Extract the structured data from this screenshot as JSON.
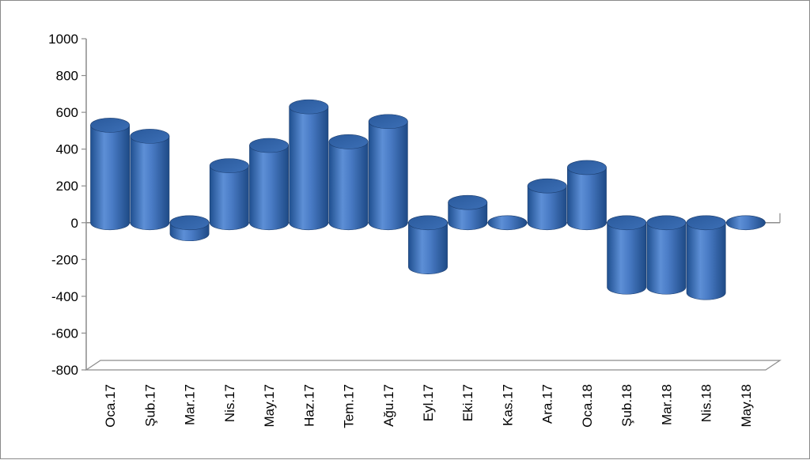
{
  "chart_data": {
    "type": "bar",
    "categories": [
      "Oca.17",
      "Şub.17",
      "Mar.17",
      "Nis.17",
      "May.17",
      "Haz.17",
      "Tem.17",
      "Ağu.17",
      "Eyl.17",
      "Eki.17",
      "Kas.17",
      "Ara.17",
      "Oca.18",
      "Şub.18",
      "Mar.18",
      "Nis.18",
      "May.18"
    ],
    "values": [
      530,
      470,
      -60,
      310,
      420,
      630,
      440,
      550,
      -240,
      110,
      -10,
      200,
      300,
      -350,
      -350,
      -380,
      -15
    ],
    "ylim": [
      -800,
      1000
    ],
    "yticks": [
      1000,
      800,
      600,
      400,
      200,
      0,
      -200,
      -400,
      -600,
      -800
    ],
    "ytick_labels": [
      "1000",
      "800",
      "600",
      "400",
      "200",
      "0",
      "-200",
      "-400",
      "-600",
      "-800"
    ],
    "title": "",
    "xlabel": "",
    "ylabel": "",
    "grid": false,
    "legend": "none",
    "colors": {
      "bar_dark": "#1f4f8f",
      "bar_mid": "#3a75c4",
      "bar_light": "#7fa8e0",
      "bar_top": "#2f5e9e",
      "axis": "#8c8c8c",
      "floor": "#d9d9d9"
    }
  }
}
